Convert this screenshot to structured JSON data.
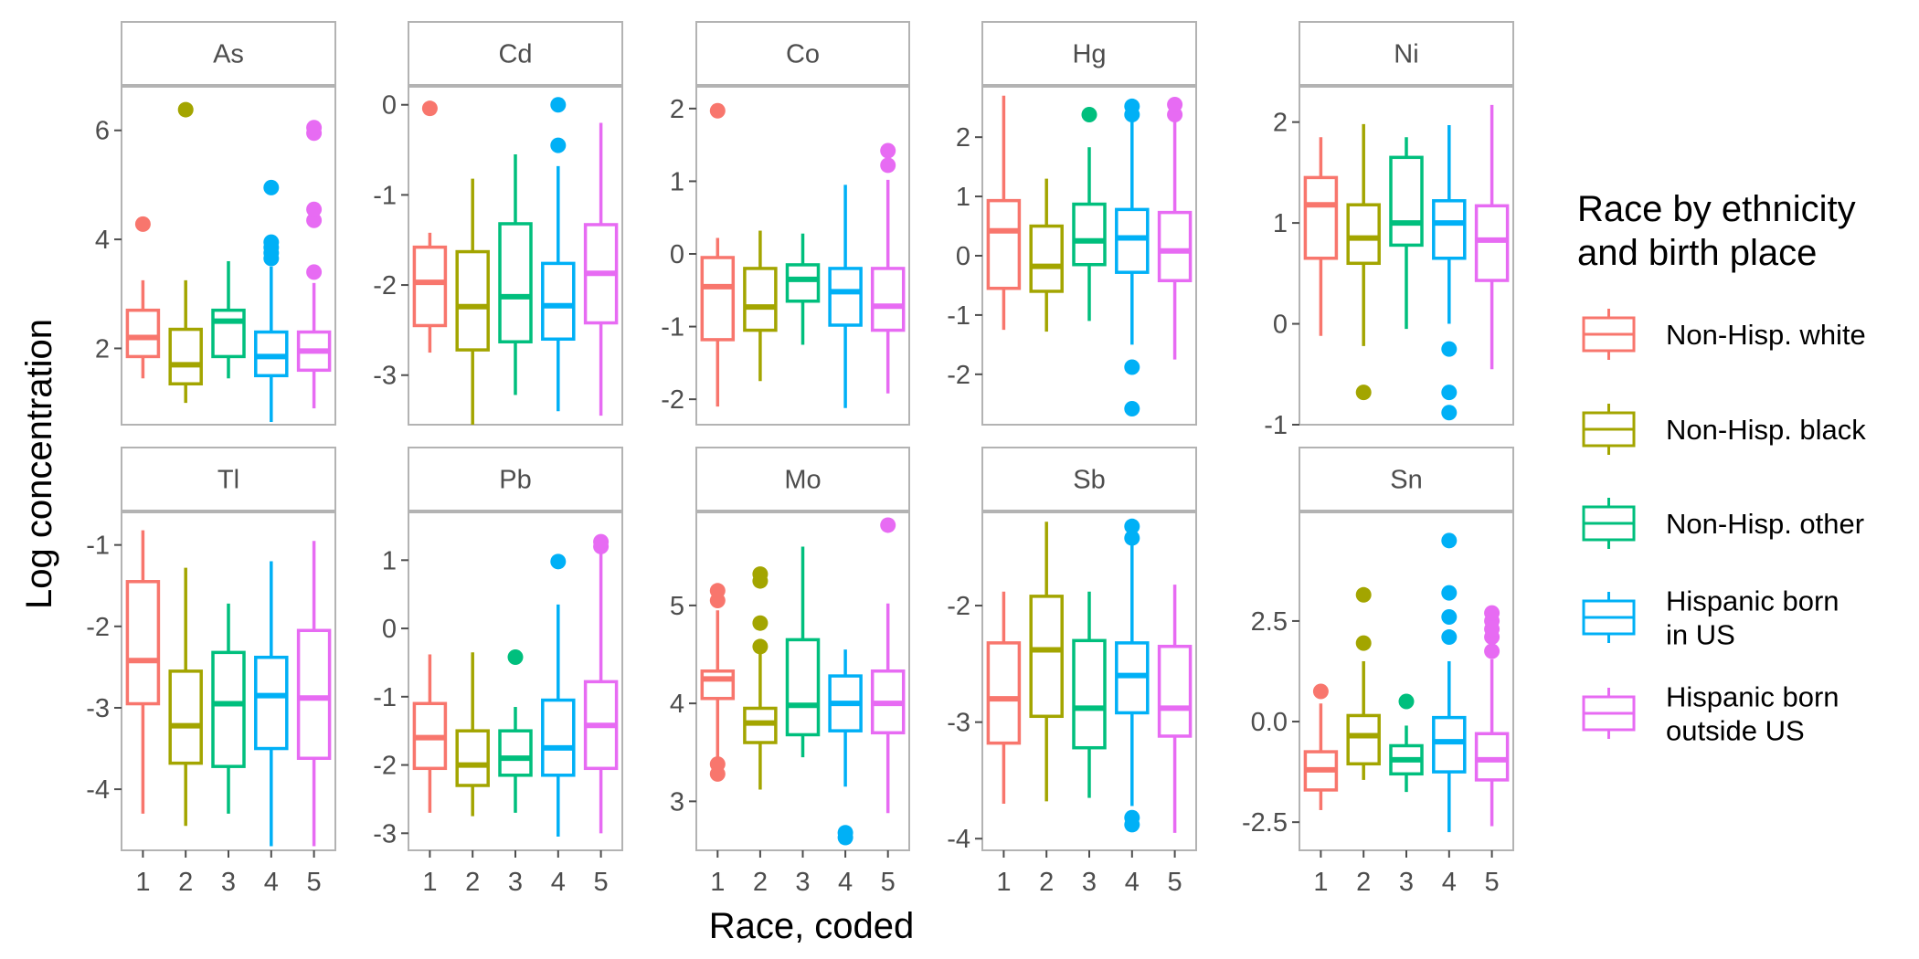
{
  "chart_data": {
    "type": "boxplot",
    "xlabel": "Race, coded",
    "ylabel": "Log concentration",
    "categories": [
      "1",
      "2",
      "3",
      "4",
      "5"
    ],
    "legend": {
      "title_lines": [
        "Race by ethnicity",
        "and birth place"
      ],
      "position": "right",
      "entries": [
        {
          "code": "1",
          "lines": [
            "Non-Hisp. white"
          ],
          "color": "#F8766D"
        },
        {
          "code": "2",
          "lines": [
            "Non-Hisp. black"
          ],
          "color": "#A3A500"
        },
        {
          "code": "3",
          "lines": [
            "Non-Hisp. other"
          ],
          "color": "#00BF7D"
        },
        {
          "code": "4",
          "lines": [
            "Hispanic born",
            "in US"
          ],
          "color": "#00B0F6"
        },
        {
          "code": "5",
          "lines": [
            "Hispanic born",
            "outside US"
          ],
          "color": "#E76BF3"
        }
      ]
    },
    "grid": false,
    "panels": [
      {
        "metal": "As",
        "ylim": [
          0.6,
          6.8
        ],
        "yticks": [
          2,
          4,
          6
        ],
        "ytick_labels": [
          "2",
          "4",
          "6"
        ],
        "boxes": [
          {
            "min": 1.45,
            "q1": 1.85,
            "median": 2.2,
            "q3": 2.7,
            "max": 3.25,
            "outliers": [
              4.28
            ]
          },
          {
            "min": 1.0,
            "q1": 1.35,
            "median": 1.7,
            "q3": 2.35,
            "max": 3.25,
            "outliers": [
              6.38
            ]
          },
          {
            "min": 1.45,
            "q1": 1.85,
            "median": 2.5,
            "q3": 2.7,
            "max": 3.6,
            "outliers": []
          },
          {
            "min": 0.65,
            "q1": 1.5,
            "median": 1.85,
            "q3": 2.3,
            "max": 3.5,
            "outliers": [
              3.65,
              3.75,
              3.85,
              3.95,
              4.95
            ]
          },
          {
            "min": 0.9,
            "q1": 1.6,
            "median": 1.95,
            "q3": 2.3,
            "max": 3.2,
            "outliers": [
              3.4,
              4.35,
              4.55,
              5.95,
              6.05
            ]
          }
        ]
      },
      {
        "metal": "Cd",
        "ylim": [
          -3.55,
          0.2
        ],
        "yticks": [
          0,
          -1,
          -2,
          -3
        ],
        "ytick_labels": [
          "0",
          "-1",
          "-2",
          "-3"
        ],
        "boxes": [
          {
            "min": -2.75,
            "q1": -2.45,
            "median": -1.97,
            "q3": -1.58,
            "max": -1.42,
            "outliers": [
              -0.04
            ]
          },
          {
            "min": -3.55,
            "q1": -2.72,
            "median": -2.24,
            "q3": -1.63,
            "max": -0.82,
            "outliers": []
          },
          {
            "min": -3.22,
            "q1": -2.63,
            "median": -2.13,
            "q3": -1.32,
            "max": -0.55,
            "outliers": []
          },
          {
            "min": -3.4,
            "q1": -2.6,
            "median": -2.23,
            "q3": -1.76,
            "max": -0.68,
            "outliers": [
              -0.45,
              0.0
            ]
          },
          {
            "min": -3.45,
            "q1": -2.42,
            "median": -1.87,
            "q3": -1.33,
            "max": -0.2,
            "outliers": []
          }
        ]
      },
      {
        "metal": "Co",
        "ylim": [
          -2.35,
          2.3
        ],
        "yticks": [
          2,
          1,
          0,
          -1,
          -2
        ],
        "ytick_labels": [
          "2",
          "1",
          "0",
          "-1",
          "-2"
        ],
        "boxes": [
          {
            "min": -2.1,
            "q1": -1.18,
            "median": -0.45,
            "q3": -0.05,
            "max": 0.22,
            "outliers": [
              1.97
            ]
          },
          {
            "min": -1.75,
            "q1": -1.05,
            "median": -0.73,
            "q3": -0.2,
            "max": 0.32,
            "outliers": []
          },
          {
            "min": -1.25,
            "q1": -0.65,
            "median": -0.35,
            "q3": -0.15,
            "max": 0.28,
            "outliers": []
          },
          {
            "min": -2.12,
            "q1": -0.98,
            "median": -0.52,
            "q3": -0.2,
            "max": 0.95,
            "outliers": []
          },
          {
            "min": -1.92,
            "q1": -1.05,
            "median": -0.72,
            "q3": -0.2,
            "max": 1.02,
            "outliers": [
              1.22,
              1.42
            ]
          }
        ]
      },
      {
        "metal": "Hg",
        "ylim": [
          -2.85,
          2.85
        ],
        "yticks": [
          2,
          1,
          0,
          -1,
          -2
        ],
        "ytick_labels": [
          "2",
          "1",
          "0",
          "-1",
          "-2"
        ],
        "boxes": [
          {
            "min": -1.25,
            "q1": -0.55,
            "median": 0.42,
            "q3": 0.93,
            "max": 2.7,
            "outliers": []
          },
          {
            "min": -1.28,
            "q1": -0.6,
            "median": -0.18,
            "q3": 0.5,
            "max": 1.3,
            "outliers": []
          },
          {
            "min": -1.1,
            "q1": -0.15,
            "median": 0.25,
            "q3": 0.87,
            "max": 1.83,
            "outliers": [
              2.38
            ]
          },
          {
            "min": -1.5,
            "q1": -0.28,
            "median": 0.3,
            "q3": 0.78,
            "max": 2.35,
            "outliers": [
              -2.58,
              -1.88,
              2.38,
              2.52
            ]
          },
          {
            "min": -1.75,
            "q1": -0.42,
            "median": 0.08,
            "q3": 0.73,
            "max": 2.3,
            "outliers": [
              2.38,
              2.55
            ]
          }
        ]
      },
      {
        "metal": "Ni",
        "ylim": [
          -1.0,
          2.35
        ],
        "yticks": [
          2,
          1,
          0,
          -1
        ],
        "ytick_labels": [
          "2",
          "1",
          "0",
          "-1"
        ],
        "boxes": [
          {
            "min": -0.12,
            "q1": 0.65,
            "median": 1.18,
            "q3": 1.45,
            "max": 1.85,
            "outliers": []
          },
          {
            "min": -0.22,
            "q1": 0.6,
            "median": 0.85,
            "q3": 1.18,
            "max": 1.98,
            "outliers": [
              -0.68
            ]
          },
          {
            "min": -0.05,
            "q1": 0.78,
            "median": 1.0,
            "q3": 1.65,
            "max": 1.85,
            "outliers": []
          },
          {
            "min": 0.0,
            "q1": 0.65,
            "median": 1.0,
            "q3": 1.22,
            "max": 1.97,
            "outliers": [
              -0.88,
              -0.68,
              -0.25
            ]
          },
          {
            "min": -0.45,
            "q1": 0.43,
            "median": 0.83,
            "q3": 1.17,
            "max": 2.17,
            "outliers": []
          }
        ]
      },
      {
        "metal": "Tl",
        "ylim": [
          -4.75,
          -0.6
        ],
        "yticks": [
          -1,
          -2,
          -3,
          -4
        ],
        "ytick_labels": [
          "-1",
          "-2",
          "-3",
          "-4"
        ],
        "boxes": [
          {
            "min": -4.3,
            "q1": -2.95,
            "median": -2.42,
            "q3": -1.45,
            "max": -0.82,
            "outliers": []
          },
          {
            "min": -4.45,
            "q1": -3.68,
            "median": -3.22,
            "q3": -2.55,
            "max": -1.28,
            "outliers": []
          },
          {
            "min": -4.3,
            "q1": -3.72,
            "median": -2.95,
            "q3": -2.32,
            "max": -1.72,
            "outliers": []
          },
          {
            "min": -4.7,
            "q1": -3.5,
            "median": -2.85,
            "q3": -2.38,
            "max": -1.2,
            "outliers": []
          },
          {
            "min": -4.7,
            "q1": -3.62,
            "median": -2.88,
            "q3": -2.05,
            "max": -0.95,
            "outliers": []
          }
        ]
      },
      {
        "metal": "Pb",
        "ylim": [
          -3.25,
          1.7
        ],
        "yticks": [
          1,
          0,
          -1,
          -2,
          -3
        ],
        "ytick_labels": [
          "1",
          "0",
          "-1",
          "-2",
          "-3"
        ],
        "boxes": [
          {
            "min": -2.7,
            "q1": -2.05,
            "median": -1.6,
            "q3": -1.1,
            "max": -0.38,
            "outliers": []
          },
          {
            "min": -2.75,
            "q1": -2.3,
            "median": -2.0,
            "q3": -1.5,
            "max": -0.35,
            "outliers": []
          },
          {
            "min": -2.7,
            "q1": -2.15,
            "median": -1.9,
            "q3": -1.5,
            "max": -1.15,
            "outliers": [
              -0.42
            ]
          },
          {
            "min": -3.05,
            "q1": -2.15,
            "median": -1.75,
            "q3": -1.05,
            "max": 0.35,
            "outliers": [
              0.98
            ]
          },
          {
            "min": -3.0,
            "q1": -2.05,
            "median": -1.42,
            "q3": -0.78,
            "max": 1.1,
            "outliers": [
              1.2,
              1.27
            ]
          }
        ]
      },
      {
        "metal": "Mo",
        "ylim": [
          2.5,
          5.95
        ],
        "yticks": [
          5,
          4,
          3
        ],
        "ytick_labels": [
          "5",
          "4",
          "3"
        ],
        "boxes": [
          {
            "min": 3.45,
            "q1": 4.05,
            "median": 4.25,
            "q3": 4.33,
            "max": 4.95,
            "outliers": [
              3.28,
              3.38,
              5.05,
              5.15
            ]
          },
          {
            "min": 3.12,
            "q1": 3.6,
            "median": 3.8,
            "q3": 3.95,
            "max": 4.52,
            "outliers": [
              4.58,
              4.82,
              5.25,
              5.32
            ]
          },
          {
            "min": 3.45,
            "q1": 3.68,
            "median": 3.98,
            "q3": 4.65,
            "max": 5.6,
            "outliers": []
          },
          {
            "min": 3.15,
            "q1": 3.72,
            "median": 4.0,
            "q3": 4.28,
            "max": 4.55,
            "outliers": [
              2.63,
              2.68
            ]
          },
          {
            "min": 2.88,
            "q1": 3.7,
            "median": 4.0,
            "q3": 4.33,
            "max": 5.02,
            "outliers": [
              5.82
            ]
          }
        ]
      },
      {
        "metal": "Sb",
        "ylim": [
          -4.1,
          -1.2
        ],
        "yticks": [
          -2,
          -3,
          -4
        ],
        "ytick_labels": [
          "-2",
          "-3",
          "-4"
        ],
        "boxes": [
          {
            "min": -3.7,
            "q1": -3.18,
            "median": -2.8,
            "q3": -2.32,
            "max": -1.88,
            "outliers": []
          },
          {
            "min": -3.68,
            "q1": -2.95,
            "median": -2.38,
            "q3": -1.92,
            "max": -1.28,
            "outliers": []
          },
          {
            "min": -3.65,
            "q1": -3.22,
            "median": -2.88,
            "q3": -2.3,
            "max": -1.88,
            "outliers": []
          },
          {
            "min": -3.72,
            "q1": -2.92,
            "median": -2.6,
            "q3": -2.32,
            "max": -1.48,
            "outliers": [
              -3.88,
              -3.82,
              -1.42,
              -1.32
            ]
          },
          {
            "min": -3.95,
            "q1": -3.12,
            "median": -2.88,
            "q3": -2.35,
            "max": -1.82,
            "outliers": []
          }
        ]
      },
      {
        "metal": "Sn",
        "ylim": [
          -3.2,
          5.2
        ],
        "yticks": [
          2.5,
          0.0,
          -2.5
        ],
        "ytick_labels": [
          "2.5",
          "0.0",
          "-2.5"
        ],
        "boxes": [
          {
            "min": -2.2,
            "q1": -1.7,
            "median": -1.2,
            "q3": -0.75,
            "max": 0.45,
            "outliers": [
              0.75
            ]
          },
          {
            "min": -1.45,
            "q1": -1.05,
            "median": -0.35,
            "q3": 0.15,
            "max": 1.5,
            "outliers": [
              1.95,
              3.15
            ]
          },
          {
            "min": -1.75,
            "q1": -1.3,
            "median": -0.95,
            "q3": -0.6,
            "max": -0.1,
            "outliers": [
              0.5
            ]
          },
          {
            "min": -2.75,
            "q1": -1.25,
            "median": -0.5,
            "q3": 0.1,
            "max": 1.5,
            "outliers": [
              2.1,
              2.6,
              3.2,
              4.5
            ]
          },
          {
            "min": -2.6,
            "q1": -1.45,
            "median": -0.95,
            "q3": -0.3,
            "max": 1.55,
            "outliers": [
              1.75,
              2.1,
              2.3,
              2.5,
              2.7
            ]
          }
        ]
      }
    ]
  }
}
